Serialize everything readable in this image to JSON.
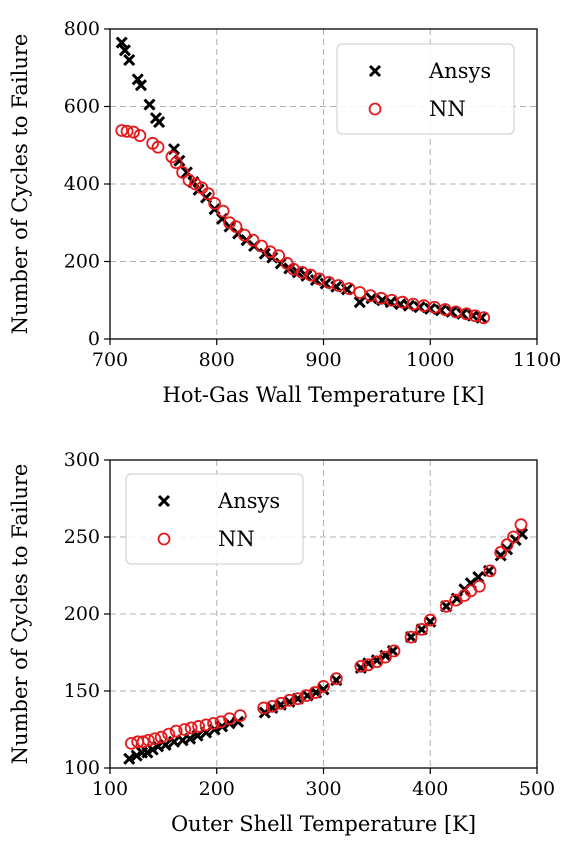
{
  "chart_data": [
    {
      "type": "scatter",
      "xlabel": "Hot-Gas Wall Temperature [K]",
      "ylabel": "Number of Cycles to Failure",
      "xlim": [
        700,
        1100
      ],
      "ylim": [
        0,
        800
      ],
      "xticks": [
        700,
        800,
        900,
        1000,
        1100
      ],
      "yticks": [
        0,
        200,
        400,
        600,
        800
      ],
      "grid": true,
      "legend_position": "top-right",
      "series": [
        {
          "name": "Ansys",
          "marker": "x",
          "color": "#000000",
          "x": [
            711,
            714,
            718,
            726,
            729,
            737,
            743,
            746,
            760,
            765,
            772,
            778,
            783,
            790,
            798,
            805,
            812,
            820,
            828,
            835,
            845,
            852,
            860,
            868,
            876,
            884,
            893,
            902,
            912,
            922,
            934,
            945,
            955,
            963,
            972,
            980,
            990,
            1000,
            1010,
            1020,
            1030,
            1040,
            1048
          ],
          "y": [
            765,
            745,
            720,
            670,
            655,
            605,
            570,
            560,
            490,
            460,
            430,
            405,
            385,
            365,
            335,
            310,
            290,
            272,
            255,
            240,
            220,
            210,
            195,
            182,
            172,
            163,
            152,
            143,
            135,
            128,
            95,
            105,
            100,
            95,
            90,
            86,
            82,
            78,
            74,
            70,
            65,
            60,
            55
          ]
        },
        {
          "name": "NN",
          "marker": "o",
          "color": "#e41a1c",
          "x": [
            711,
            716,
            722,
            728,
            740,
            745,
            758,
            762,
            768,
            774,
            780,
            786,
            792,
            798,
            806,
            812,
            818,
            826,
            834,
            842,
            850,
            858,
            866,
            872,
            880,
            888,
            896,
            905,
            914,
            924,
            934,
            944,
            954,
            964,
            974,
            984,
            994,
            1004,
            1014,
            1024,
            1034,
            1042,
            1050
          ],
          "y": [
            538,
            536,
            534,
            525,
            505,
            495,
            470,
            455,
            430,
            410,
            400,
            390,
            375,
            350,
            330,
            300,
            290,
            268,
            255,
            240,
            225,
            215,
            195,
            180,
            172,
            165,
            155,
            146,
            138,
            130,
            120,
            112,
            105,
            100,
            95,
            90,
            86,
            82,
            76,
            70,
            65,
            60,
            55
          ]
        }
      ]
    },
    {
      "type": "scatter",
      "xlabel": "Outer Shell Temperature [K]",
      "ylabel": "Number of Cycles to Failure",
      "xlim": [
        100,
        500
      ],
      "ylim": [
        100,
        300
      ],
      "xticks": [
        100,
        200,
        300,
        400,
        500
      ],
      "yticks": [
        100,
        150,
        200,
        250,
        300
      ],
      "grid": true,
      "legend_position": "top-left",
      "series": [
        {
          "name": "Ansys",
          "marker": "x",
          "color": "#000000",
          "x": [
            118,
            125,
            130,
            135,
            140,
            145,
            152,
            160,
            168,
            175,
            182,
            190,
            198,
            205,
            212,
            220,
            245,
            252,
            260,
            268,
            276,
            285,
            293,
            300,
            312,
            335,
            342,
            350,
            358,
            365,
            382,
            392,
            400,
            415,
            425,
            432,
            438,
            445,
            455,
            466,
            472,
            480,
            486
          ],
          "y": [
            106,
            108,
            110,
            110,
            112,
            114,
            115,
            117,
            118,
            119,
            121,
            123,
            125,
            127,
            129,
            130,
            136,
            139,
            141,
            143,
            145,
            147,
            149,
            151,
            157,
            165,
            168,
            170,
            173,
            176,
            185,
            190,
            195,
            205,
            210,
            216,
            220,
            224,
            228,
            238,
            242,
            248,
            252
          ]
        },
        {
          "name": "NN",
          "marker": "o",
          "color": "#e41a1c",
          "x": [
            120,
            126,
            131,
            136,
            142,
            148,
            155,
            162,
            170,
            176,
            183,
            190,
            197,
            204,
            212,
            222,
            244,
            252,
            260,
            268,
            276,
            284,
            292,
            300,
            312,
            335,
            342,
            350,
            358,
            366,
            382,
            392,
            400,
            415,
            424,
            432,
            438,
            446,
            456,
            466,
            472,
            478,
            485
          ],
          "y": [
            116,
            117,
            117,
            118,
            119,
            120,
            122,
            124,
            125,
            126,
            127,
            128,
            129,
            130,
            132,
            134,
            139,
            140,
            142,
            144,
            145,
            147,
            149,
            153,
            158,
            166,
            167,
            169,
            172,
            176,
            185,
            190,
            196,
            205,
            209,
            212,
            215,
            218,
            228,
            240,
            245,
            250,
            258
          ]
        }
      ]
    }
  ]
}
